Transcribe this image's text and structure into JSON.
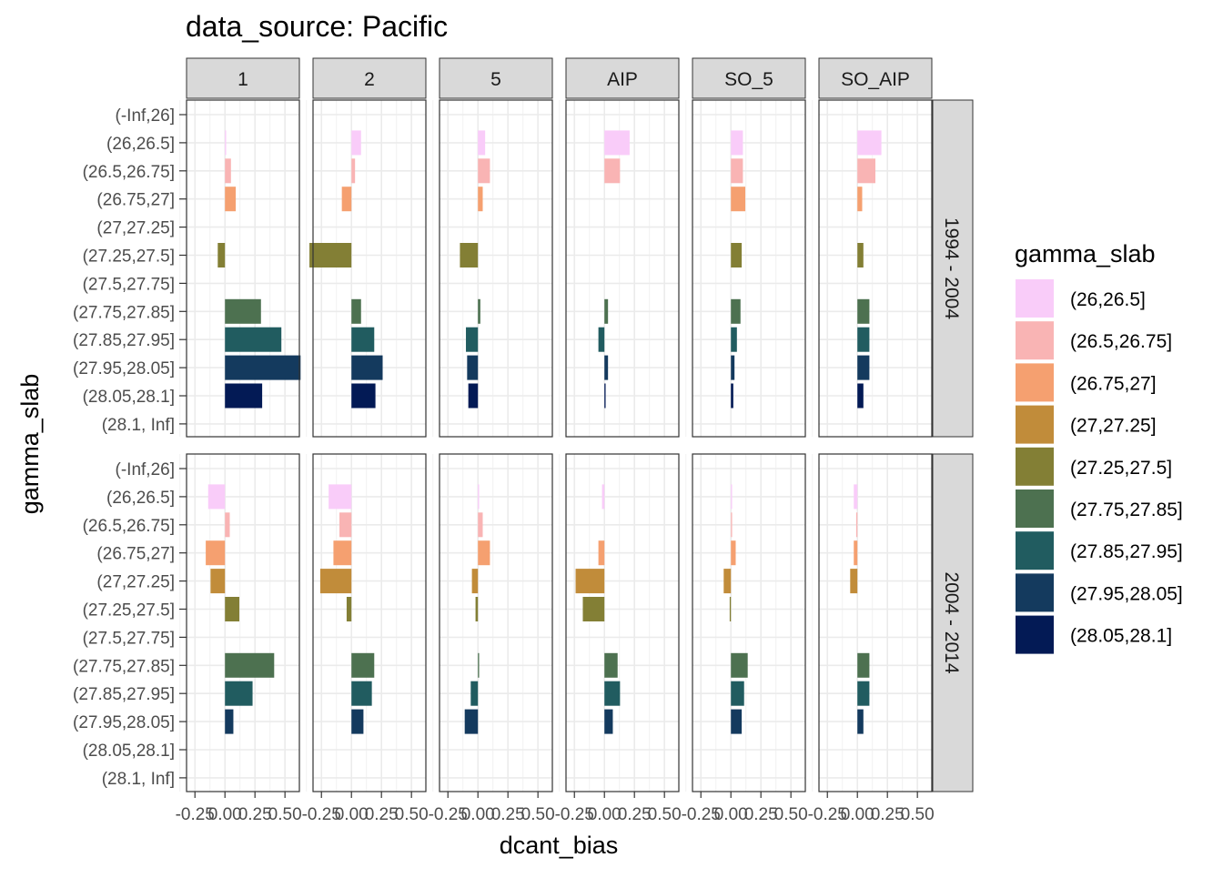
{
  "chart_data": {
    "type": "bar",
    "orientation": "horizontal",
    "title": "data_source: Pacific",
    "xlabel": "dcant_bias",
    "ylabel": "gamma_slab",
    "xlim": [
      -0.32,
      0.62
    ],
    "x_ticks": [
      -0.25,
      0.0,
      0.25,
      0.5
    ],
    "x_tick_labels": [
      "-0.25",
      "0.00",
      "0.25",
      "0.50"
    ],
    "grid": true,
    "legend_position": "right",
    "legend_title": "gamma_slab",
    "categories": [
      "(-Inf,26]",
      "(26,26.5]",
      "(26.5,26.75]",
      "(26.75,27]",
      "(27,27.25]",
      "(27.25,27.5]",
      "(27.5,27.75]",
      "(27.75,27.85]",
      "(27.85,27.95]",
      "(27.95,28.05]",
      "(28.05,28.1]",
      "(28.1, Inf]"
    ],
    "legend_entries": [
      {
        "label": "(26,26.5]",
        "color": "#F9CCF9"
      },
      {
        "label": "(26.5,26.75]",
        "color": "#F9B4B4"
      },
      {
        "label": "(26.75,27]",
        "color": "#F5A070"
      },
      {
        "label": "(27,27.25]",
        "color": "#C18C3A"
      },
      {
        "label": "(27.25,27.5]",
        "color": "#837F35"
      },
      {
        "label": "(27.75,27.85]",
        "color": "#4D7150"
      },
      {
        "label": "(27.85,27.95]",
        "color": "#215C60"
      },
      {
        "label": "(27.95,28.05]",
        "color": "#143A5E"
      },
      {
        "label": "(28.05,28.1]",
        "color": "#031A55"
      }
    ],
    "col_facets": [
      "1",
      "2",
      "5",
      "AIP",
      "SO_5",
      "SO_AIP"
    ],
    "row_facets": [
      "1994 - 2004",
      "2004 - 2014"
    ],
    "values": [
      [
        [
          null,
          0.01,
          0.05,
          0.09,
          null,
          -0.06,
          null,
          0.3,
          0.47,
          0.63,
          0.31,
          null
        ],
        [
          null,
          0.08,
          0.03,
          -0.08,
          null,
          -0.35,
          null,
          0.08,
          0.19,
          0.26,
          0.2,
          null
        ],
        [
          null,
          0.06,
          0.1,
          0.04,
          null,
          -0.15,
          null,
          0.02,
          -0.1,
          -0.09,
          -0.08,
          null
        ],
        [
          null,
          0.21,
          0.13,
          null,
          null,
          null,
          null,
          0.03,
          -0.05,
          0.03,
          0.01,
          null
        ],
        [
          null,
          0.1,
          0.1,
          0.12,
          null,
          0.09,
          null,
          0.08,
          0.05,
          0.03,
          0.02,
          null
        ],
        [
          null,
          0.2,
          0.15,
          0.04,
          null,
          0.05,
          null,
          0.1,
          0.1,
          0.1,
          0.05,
          null
        ]
      ],
      [
        [
          null,
          -0.14,
          0.04,
          -0.16,
          -0.12,
          0.12,
          null,
          0.41,
          0.23,
          0.07,
          null,
          null
        ],
        [
          null,
          -0.19,
          -0.1,
          -0.15,
          -0.26,
          -0.04,
          null,
          0.19,
          0.17,
          0.1,
          null,
          null
        ],
        [
          null,
          0.01,
          0.04,
          0.1,
          -0.05,
          -0.02,
          null,
          0.01,
          -0.06,
          -0.11,
          null,
          null
        ],
        [
          null,
          -0.02,
          null,
          -0.05,
          -0.24,
          -0.18,
          null,
          0.11,
          0.13,
          0.07,
          null,
          null
        ],
        [
          null,
          0.01,
          0.01,
          0.04,
          -0.06,
          -0.01,
          null,
          0.14,
          0.11,
          0.09,
          null,
          null
        ],
        [
          null,
          -0.03,
          -0.01,
          -0.03,
          -0.06,
          null,
          null,
          0.1,
          0.1,
          0.05,
          null,
          null
        ]
      ]
    ]
  }
}
